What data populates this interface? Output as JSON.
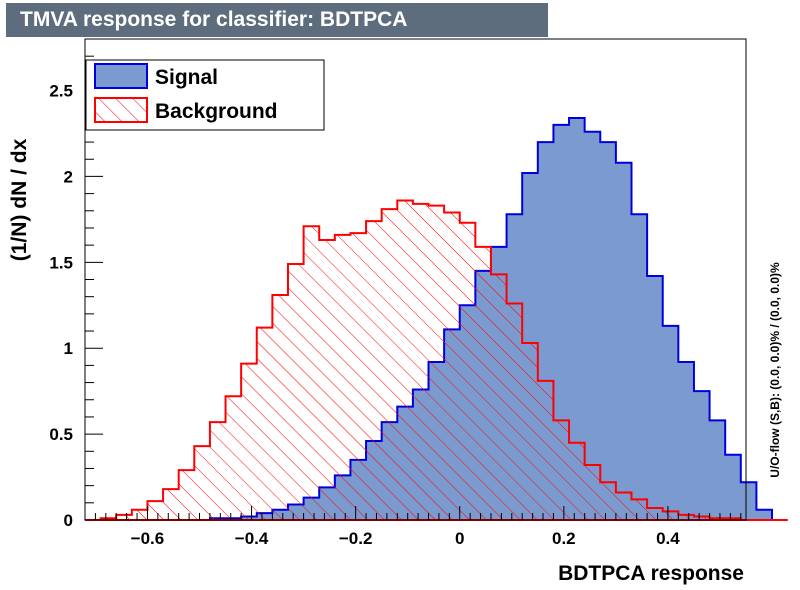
{
  "chart_data": {
    "type": "histogram",
    "title": "TMVA response for classifier: BDTPCA",
    "xlabel": "BDTPCA response",
    "ylabel": "(1/N) dN / dx",
    "side_text": "U/O-flow (S,B): (0.0, 0.0)% / (0.0, 0.0)%",
    "xlim": [
      -0.72,
      0.55
    ],
    "ylim": [
      0,
      2.8
    ],
    "x_ticks": [
      -0.6,
      -0.4,
      -0.2,
      0,
      0.2,
      0.4
    ],
    "x_tick_labels": [
      "−0.6",
      "−0.4",
      "−0.2",
      "0",
      "0.2",
      "0.4"
    ],
    "y_ticks": [
      0,
      0.5,
      1,
      1.5,
      2,
      2.5
    ],
    "y_tick_labels": [
      "0",
      "0.5",
      "1",
      "1.5",
      "2",
      "2.5"
    ],
    "bin_start": -0.72,
    "bin_width": 0.03,
    "legend": {
      "position": "top-left",
      "entries": [
        "Signal",
        "Background"
      ]
    },
    "colors": {
      "signal_fill": "#7b9bd0",
      "signal_line": "#0000dd",
      "background_line": "#ff0000",
      "title_bg": "#5d6d7e"
    },
    "series": [
      {
        "name": "Signal",
        "values": [
          0,
          0,
          0,
          0,
          0,
          0,
          0,
          0,
          0.01,
          0.01,
          0.02,
          0.04,
          0.06,
          0.09,
          0.13,
          0.19,
          0.26,
          0.35,
          0.46,
          0.57,
          0.66,
          0.76,
          0.92,
          1.11,
          1.25,
          1.45,
          1.59,
          1.78,
          2.02,
          2.2,
          2.3,
          2.34,
          2.26,
          2.2,
          2.08,
          1.78,
          1.42,
          1.13,
          0.92,
          0.75,
          0.58,
          0.38,
          0.22,
          0.06,
          0
        ]
      },
      {
        "name": "Background",
        "values": [
          0,
          0.01,
          0.03,
          0.06,
          0.11,
          0.18,
          0.29,
          0.43,
          0.57,
          0.72,
          0.91,
          1.12,
          1.31,
          1.49,
          1.71,
          1.63,
          1.66,
          1.67,
          1.74,
          1.81,
          1.86,
          1.84,
          1.83,
          1.79,
          1.73,
          1.59,
          1.43,
          1.26,
          1.03,
          0.81,
          0.58,
          0.45,
          0.32,
          0.22,
          0.16,
          0.12,
          0.07,
          0.05,
          0.03,
          0.02,
          0.01,
          0.01,
          0,
          0,
          0
        ]
      }
    ]
  }
}
